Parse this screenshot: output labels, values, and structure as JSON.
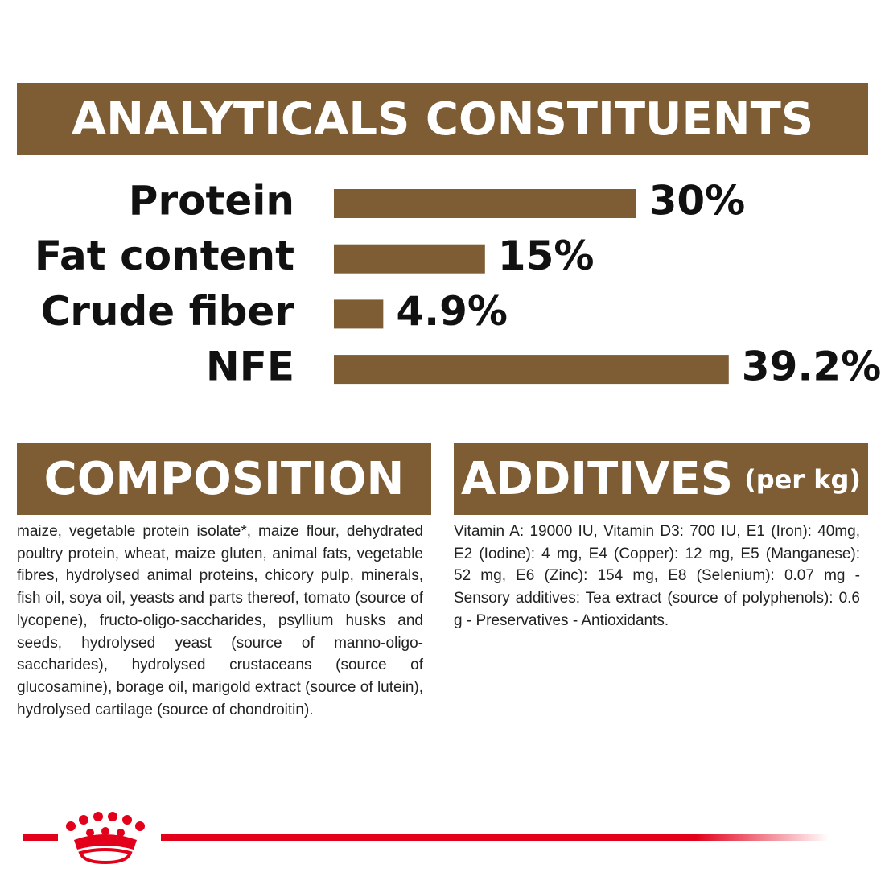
{
  "chart_data": {
    "type": "bar",
    "title": "ANALYTICALS CONSTITUENTS",
    "categories": [
      "Protein",
      "Fat content",
      "Crude fiber",
      "NFE"
    ],
    "values": [
      30,
      15,
      4.9,
      39.2
    ],
    "value_labels": [
      "30%",
      "15%",
      "4.9%",
      "39.2%"
    ],
    "color": "#7f5d34"
  },
  "composition": {
    "title": "COMPOSITION",
    "text": "maize, vegetable protein isolate*, maize flour, dehydrated poultry protein, wheat, maize gluten, animal fats, vegetable fibres, hydrolysed animal proteins, chicory pulp, minerals, fish oil, soya oil, yeasts and parts thereof, tomato (source of lycopene), fructo-oligo-saccharides, psyllium husks and seeds, hydrolysed yeast (source of manno-oligo-saccharides), hydrolysed crustaceans (source of glucosamine), borage oil, marigold extract (source of lutein), hydrolysed cartilage (source of chondroitin)."
  },
  "additives": {
    "title": "ADDITIVES",
    "subtitle": "(per kg)",
    "text": "Vitamin A: 19000 IU, Vitamin D3: 700 IU, E1 (Iron): 40mg, E2 (Iodine): 4 mg, E4 (Copper): 12 mg, E5 (Manganese): 52 mg, E6 (Zinc): 154 mg, E8 (Selenium): 0.07 mg - Sensory additives: Tea extract (source of polyphenols): 0.6 g - Preservatives - Antioxidants."
  }
}
